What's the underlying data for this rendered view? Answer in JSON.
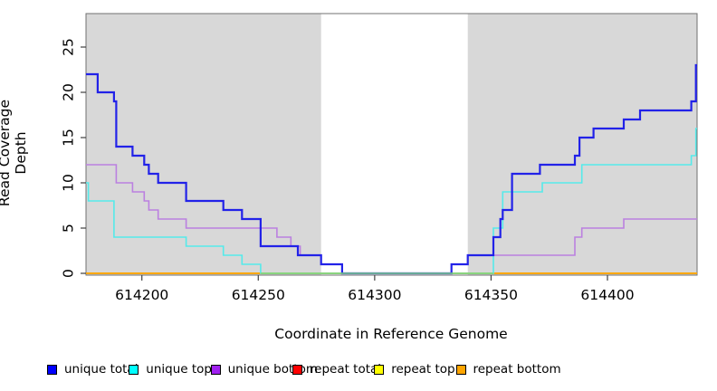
{
  "chart_data": {
    "type": "line",
    "step": "after",
    "title": "",
    "xlabel": "Coordinate in Reference Genome",
    "ylabel": "Read Coverage Depth",
    "xlim": [
      614176,
      614438.5
    ],
    "ylim": [
      0,
      28.7
    ],
    "x_ticks": [
      614200,
      614250,
      614300,
      614350,
      614400
    ],
    "x_tick_labels": [
      "614200",
      "614250",
      "614300",
      "614350",
      "614400"
    ],
    "y_ticks": [
      0,
      5,
      10,
      15,
      20,
      25
    ],
    "y_tick_labels": [
      "0",
      "5",
      "10",
      "15",
      "20",
      "25"
    ],
    "grid": false,
    "legend_position": "bottom",
    "background_color": "#ffffff",
    "shaded_region_color": "#d8d8d8",
    "shaded_regions": [
      {
        "x1": 614176,
        "x2": 614277
      },
      {
        "x1": 614340,
        "x2": 614438.5
      }
    ],
    "series": [
      {
        "name": "repeat total",
        "color": "#DD0000",
        "legend_color": "#FF0000",
        "width": 1.6,
        "points": [
          [
            614176,
            0
          ],
          [
            614438.5,
            0
          ]
        ]
      },
      {
        "name": "repeat top",
        "color": "#FFFF00",
        "legend_color": "#FFFF00",
        "width": 1.6,
        "points": [
          [
            614176,
            0
          ],
          [
            614438.5,
            0
          ]
        ]
      },
      {
        "name": "repeat bottom",
        "color": "#FFA500",
        "legend_color": "#FFA500",
        "width": 1.8,
        "points": [
          [
            614176,
            0
          ],
          [
            614438.5,
            0
          ]
        ]
      },
      {
        "name": "unique bottom",
        "color": "#BB80E0",
        "legend_color": "#A020F0",
        "width": 1.6,
        "points": [
          [
            614176,
            12
          ],
          [
            614189,
            10
          ],
          [
            614196,
            9
          ],
          [
            614201,
            8
          ],
          [
            614203,
            7
          ],
          [
            614207,
            6
          ],
          [
            614219,
            5
          ],
          [
            614258,
            4
          ],
          [
            614264,
            3
          ],
          [
            614268,
            2
          ],
          [
            614277,
            1
          ],
          [
            614286,
            0
          ],
          [
            614333,
            1
          ],
          [
            614340,
            2
          ],
          [
            614386,
            4
          ],
          [
            614389,
            5
          ],
          [
            614407,
            6
          ],
          [
            614438.5,
            6
          ]
        ]
      },
      {
        "name": "unique top",
        "color": "#55EAEA",
        "legend_color": "#00FFFF",
        "width": 1.6,
        "points": [
          [
            614176,
            10
          ],
          [
            614177,
            8
          ],
          [
            614188,
            4
          ],
          [
            614219,
            3
          ],
          [
            614235,
            2
          ],
          [
            614243,
            1
          ],
          [
            614251,
            0
          ],
          [
            614351,
            5
          ],
          [
            614355,
            9
          ],
          [
            614372,
            10
          ],
          [
            614389,
            12
          ],
          [
            614436,
            13
          ],
          [
            614438,
            16
          ],
          [
            614438.5,
            16
          ]
        ]
      },
      {
        "name": "unique total",
        "color": "#2222E8",
        "legend_color": "#0000FF",
        "width": 2.2,
        "points": [
          [
            614176,
            22
          ],
          [
            614181,
            20
          ],
          [
            614188,
            19
          ],
          [
            614189,
            14
          ],
          [
            614196,
            13
          ],
          [
            614201,
            12
          ],
          [
            614203,
            11
          ],
          [
            614207,
            10
          ],
          [
            614219,
            8
          ],
          [
            614235,
            7
          ],
          [
            614243,
            6
          ],
          [
            614251,
            3
          ],
          [
            614267,
            2
          ],
          [
            614277,
            1
          ],
          [
            614286,
            0
          ],
          [
            614333,
            1
          ],
          [
            614340,
            2
          ],
          [
            614351,
            4
          ],
          [
            614354,
            6
          ],
          [
            614355,
            7
          ],
          [
            614359,
            11
          ],
          [
            614371,
            12
          ],
          [
            614386,
            13
          ],
          [
            614388,
            15
          ],
          [
            614394,
            16
          ],
          [
            614407,
            17
          ],
          [
            614414,
            18
          ],
          [
            614436,
            19
          ],
          [
            614438,
            23
          ],
          [
            614438.5,
            23
          ]
        ]
      }
    ],
    "zero_overlay": {
      "color": "#7FD87F",
      "x1": 614251,
      "x2": 614351,
      "note": "cyan/yellow overlap at depth 0"
    }
  },
  "legend": {
    "items": [
      {
        "label": "unique total",
        "color": "#0000FF"
      },
      {
        "label": "unique top",
        "color": "#00FFFF"
      },
      {
        "label": "unique bottom",
        "color": "#A020F0"
      },
      {
        "label": "repeat total",
        "color": "#FF0000"
      },
      {
        "label": "repeat top",
        "color": "#FFFF00"
      },
      {
        "label": "repeat bottom",
        "color": "#FFA500"
      }
    ]
  }
}
